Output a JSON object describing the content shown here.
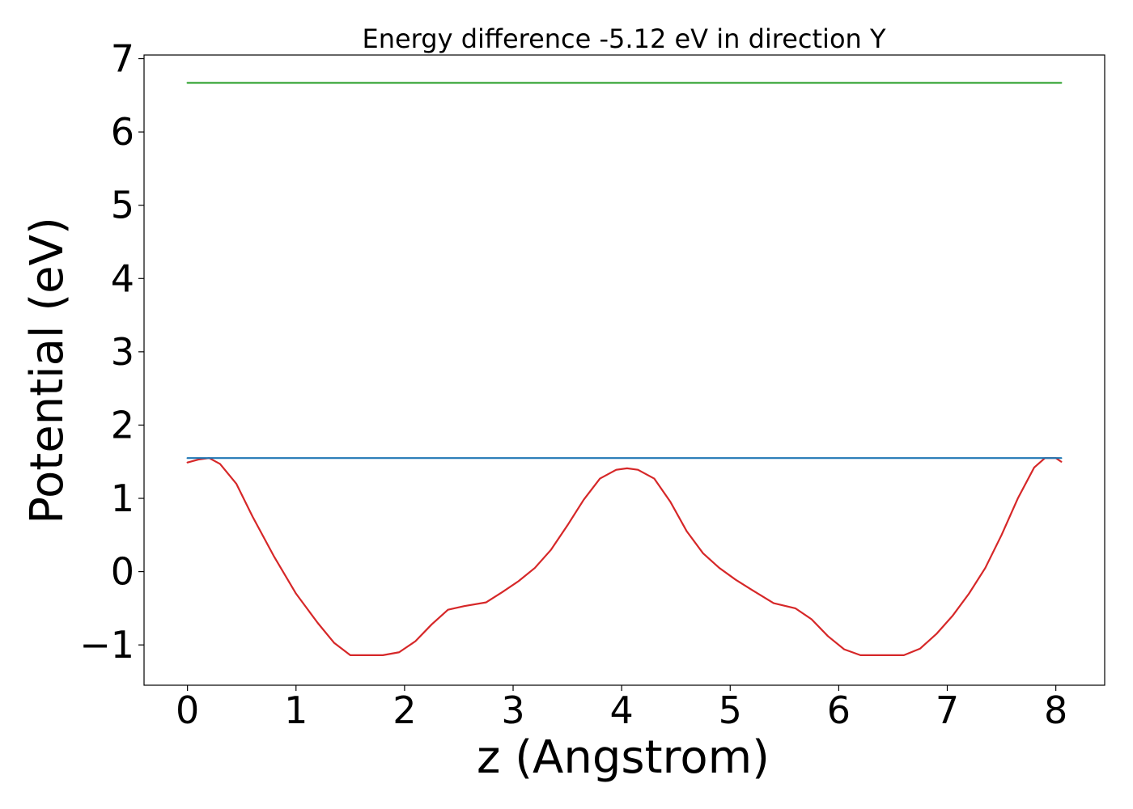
{
  "chart_data": {
    "type": "line",
    "title": "Energy difference -5.12 eV in direction Y",
    "xlabel": "z (Angstrom)",
    "ylabel": "Potential (eV)",
    "xlim": [
      -0.4,
      8.45
    ],
    "ylim": [
      -1.55,
      7.05
    ],
    "x_ticks": [
      "0",
      "1",
      "2",
      "3",
      "4",
      "5",
      "6",
      "7",
      "8"
    ],
    "y_ticks": [
      "−1",
      "0",
      "1",
      "2",
      "3",
      "4",
      "5",
      "6",
      "7"
    ],
    "x_tick_values": [
      0,
      1,
      2,
      3,
      4,
      5,
      6,
      7,
      8
    ],
    "y_tick_values": [
      -1,
      0,
      1,
      2,
      3,
      4,
      5,
      6,
      7
    ],
    "grid": false,
    "series": [
      {
        "color": "#d62728",
        "x": [
          0.0,
          0.1,
          0.2,
          0.3,
          0.45,
          0.6,
          0.8,
          1.0,
          1.2,
          1.35,
          1.5,
          1.65,
          1.8,
          1.95,
          2.1,
          2.25,
          2.4,
          2.55,
          2.75,
          2.9,
          3.05,
          3.2,
          3.35,
          3.5,
          3.65,
          3.8,
          3.95,
          4.05,
          4.15,
          4.3,
          4.45,
          4.6,
          4.75,
          4.9,
          5.05,
          5.2,
          5.4,
          5.6,
          5.75,
          5.9,
          6.05,
          6.2,
          6.35,
          6.5,
          6.6,
          6.75,
          6.9,
          7.05,
          7.2,
          7.35,
          7.5,
          7.65,
          7.8,
          7.9,
          8.0,
          8.05
        ],
        "y": [
          1.49,
          1.53,
          1.55,
          1.47,
          1.2,
          0.75,
          0.2,
          -0.3,
          -0.7,
          -0.97,
          -1.14,
          -1.14,
          -1.14,
          -1.1,
          -0.95,
          -0.72,
          -0.52,
          -0.47,
          -0.42,
          -0.28,
          -0.13,
          0.05,
          0.3,
          0.63,
          0.98,
          1.27,
          1.39,
          1.41,
          1.39,
          1.27,
          0.95,
          0.55,
          0.25,
          0.05,
          -0.11,
          -0.25,
          -0.43,
          -0.5,
          -0.65,
          -0.88,
          -1.06,
          -1.14,
          -1.14,
          -1.14,
          -1.14,
          -1.05,
          -0.85,
          -0.6,
          -0.3,
          0.05,
          0.5,
          1.0,
          1.42,
          1.55,
          1.55,
          1.5
        ]
      },
      {
        "color": "#1f77b4",
        "x": [
          0.0,
          8.05
        ],
        "y": [
          1.55,
          1.55
        ]
      },
      {
        "color": "#2ca02c",
        "x": [
          0.0,
          8.05
        ],
        "y": [
          6.67,
          6.67
        ]
      }
    ]
  }
}
